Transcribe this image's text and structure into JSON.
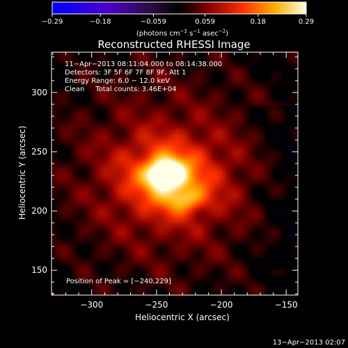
{
  "chart_data": {
    "type": "heatmap",
    "title": "Reconstructed RHESSI Image",
    "xlabel": "Heliocentric X (arcsec)",
    "ylabel": "Heliocentric Y (arcsec)",
    "xlim": [
      -331,
      -141
    ],
    "ylim": [
      129,
      334
    ],
    "x_ticks": [
      -300,
      -250,
      -200,
      -150
    ],
    "x_tick_labels": [
      "−300",
      "−250",
      "−200",
      "−150"
    ],
    "y_ticks": [
      150,
      200,
      250,
      300
    ],
    "y_tick_labels": [
      "150",
      "200",
      "250",
      "300"
    ],
    "colorbar": {
      "range": [
        -0.29,
        0.29
      ],
      "ticks": [
        -0.29,
        -0.18,
        -0.059,
        0.059,
        0.18,
        0.29
      ],
      "tick_labels": [
        "−0.29",
        "−0.18",
        "−0.059",
        "0.059",
        "0.18",
        "0.29"
      ],
      "label_main": "(photons cm",
      "label_exp1": "−2",
      "label_mid1": " s",
      "label_exp2": "−1",
      "label_mid2": " asec",
      "label_exp3": "−2",
      "label_end": ")"
    },
    "annotations": [
      "11−Apr−2013 08:11:04.000 to 08:14:38.000",
      "Detectors: 3F 5F 6F 7F 8F 9F, Att 1",
      "Energy Range: 6.0 − 12.0 keV",
      "Clean     Total counts: 3.46E+04"
    ],
    "peak_label": "Position of Peak = [−240,229]",
    "peak": [
      -240,
      229
    ],
    "source": {
      "core": {
        "x": -243,
        "y": 231,
        "sigma_x": 9,
        "sigma_y": 8,
        "amp": 0.29
      },
      "halo": {
        "x": -240,
        "y": 228,
        "sigma_x": 28,
        "sigma_y": 24,
        "amp": 0.13
      },
      "lobe": {
        "x": -228,
        "y": 210,
        "sigma_x": 10,
        "sigma_y": 7,
        "amp": 0.1
      }
    },
    "background_level": 0.075
  },
  "footer_date": "13−Apr−2013 02:07"
}
